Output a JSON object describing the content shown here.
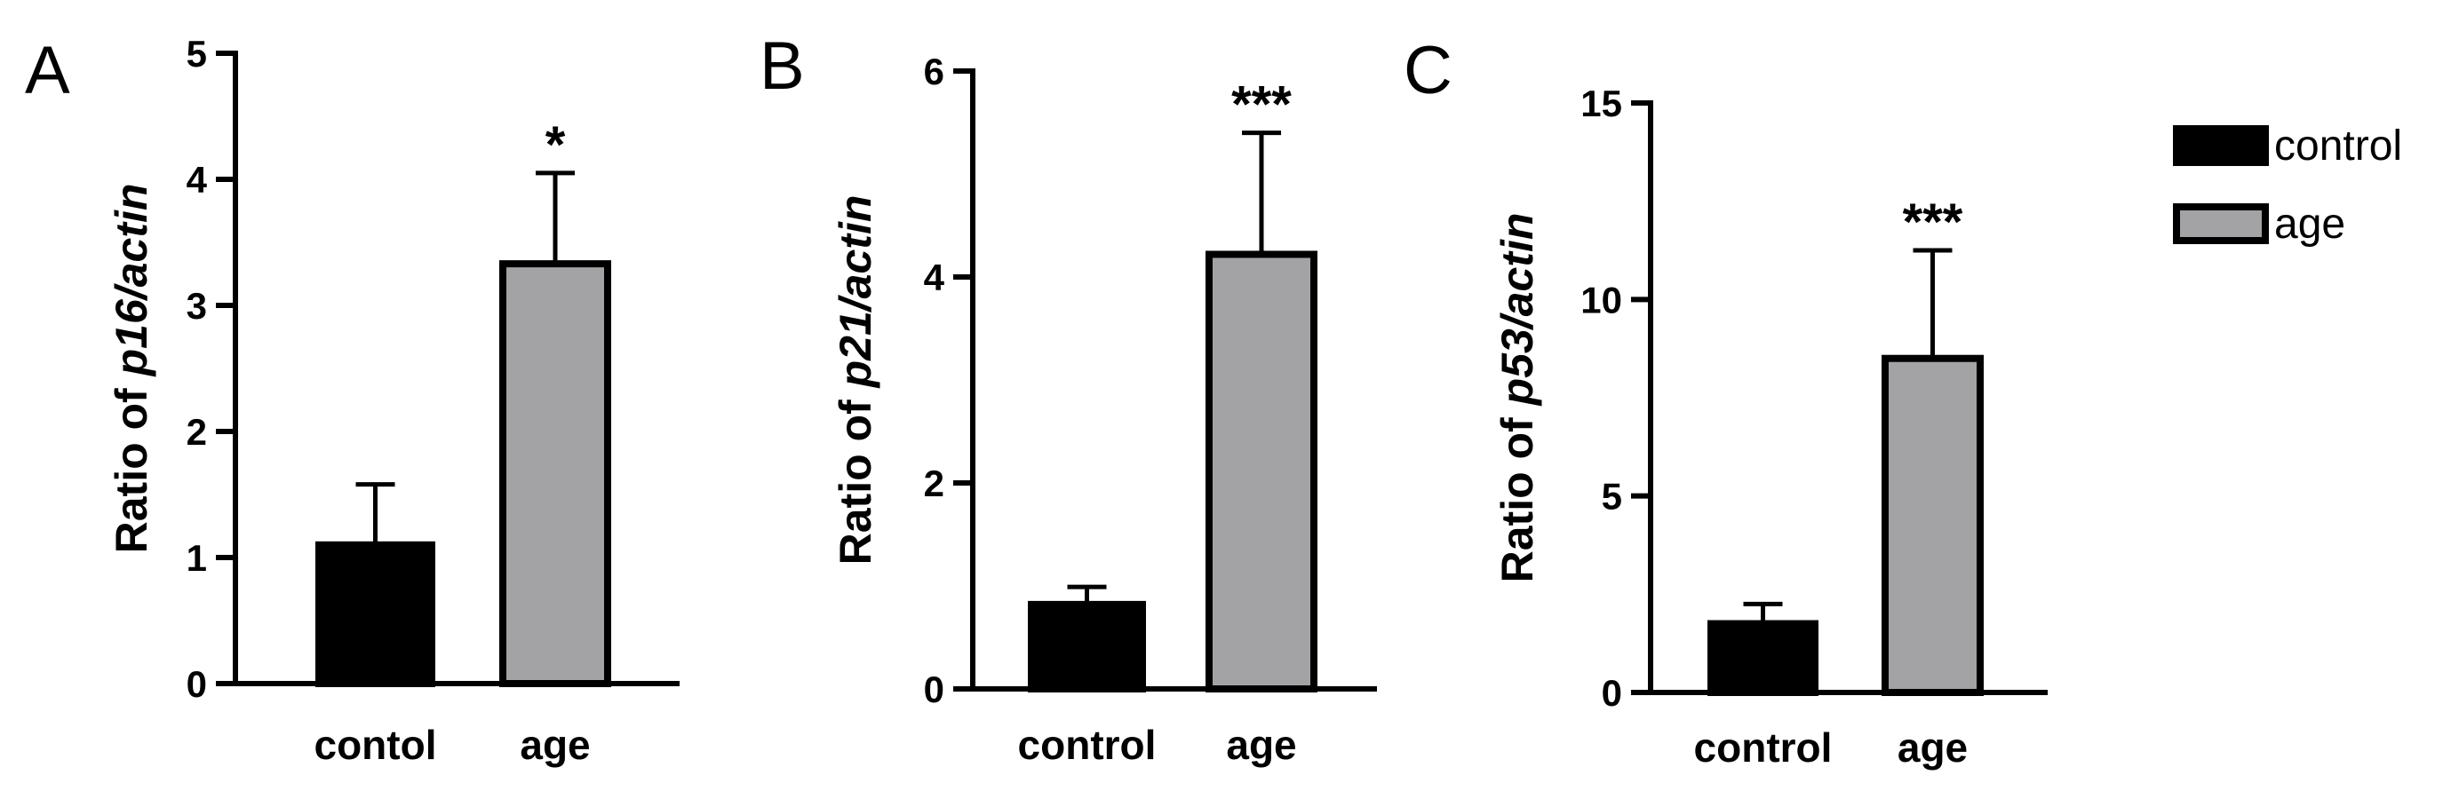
{
  "colors": {
    "control": "#000000",
    "age": "#a3a3a6",
    "axis": "#000000"
  },
  "legend": {
    "items": [
      {
        "label": "control",
        "color": "#000000"
      },
      {
        "label": "age",
        "color": "#a3a3a6"
      }
    ]
  },
  "chart_data": [
    {
      "panel": "A",
      "type": "bar",
      "categories": [
        "contol",
        "age"
      ],
      "values": [
        1.1,
        3.33
      ],
      "errors": [
        0.48,
        0.72
      ],
      "significance": [
        "",
        "*"
      ],
      "ylabel_prefix": "Ratio of ",
      "ylabel_gene": "p16",
      "ylabel_suffix": "/actin",
      "ylim": [
        0,
        5
      ],
      "yticks": [
        0,
        1,
        2,
        3,
        4,
        5
      ]
    },
    {
      "panel": "B",
      "type": "bar",
      "categories": [
        "control",
        "age"
      ],
      "values": [
        0.82,
        4.22
      ],
      "errors": [
        0.17,
        1.18
      ],
      "significance": [
        "",
        "***"
      ],
      "ylabel_prefix": "Ratio of ",
      "ylabel_gene": "p21",
      "ylabel_suffix": "/actin",
      "ylim": [
        0,
        6
      ],
      "yticks": [
        0,
        2,
        4,
        6
      ]
    },
    {
      "panel": "C",
      "type": "bar",
      "categories": [
        "control",
        "age"
      ],
      "values": [
        1.75,
        8.5
      ],
      "errors": [
        0.5,
        2.75
      ],
      "significance": [
        "",
        "***"
      ],
      "ylabel_prefix": "Ratio of ",
      "ylabel_gene": "p53",
      "ylabel_suffix": "/actin",
      "ylim": [
        0,
        15
      ],
      "yticks": [
        0,
        5,
        10,
        15
      ]
    }
  ]
}
